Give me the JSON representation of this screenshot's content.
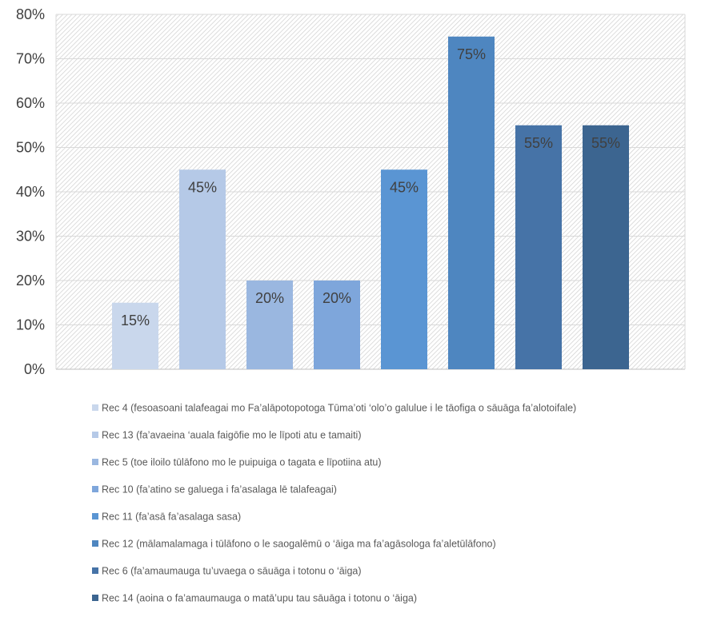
{
  "chart_data": {
    "type": "bar",
    "y_unit": "%",
    "ylim": [
      0,
      80
    ],
    "y_ticks": [
      0,
      10,
      20,
      30,
      40,
      50,
      60,
      70,
      80
    ],
    "grid": true,
    "legend_position": "bottom",
    "series": [
      {
        "name": "Rec 4 (fesoasoani talafeagai mo Fa’alāpotopotoga Tūma’oti ‘olo’o galulue i le tāofiga o sāuāga fa’alotoifale)",
        "value": 15,
        "label": "15%",
        "color": "#c9d7ec"
      },
      {
        "name": "Rec 13 (fa’avaeina ‘auala faigōfie mo le līpoti atu e tamaiti)",
        "value": 45,
        "label": "45%",
        "color": "#b5c9e7"
      },
      {
        "name": "Rec 5 (toe iloilo tūlāfono mo le puipuiga o tagata e līpotiina atu)",
        "value": 20,
        "label": "20%",
        "color": "#9ab7e0"
      },
      {
        "name": "Rec 10 (fa’atino se galuega i fa’asalaga lē talafeagai)",
        "value": 20,
        "label": "20%",
        "color": "#7ea6db"
      },
      {
        "name": "Rec 11 (fa’asā fa’asalaga sasa)",
        "value": 45,
        "label": "45%",
        "color": "#5a95d3"
      },
      {
        "name": "Rec 12 (mālamalamaga i tūlāfono o le saogalēmū o ‘āiga ma fa’agāsologa fa’aletūlāfono)",
        "value": 75,
        "label": "75%",
        "color": "#4e86c0"
      },
      {
        "name": "Rec 6 (fa’amaumauga tu’uvaega o sāuāga i totonu o ‘āiga)",
        "value": 55,
        "label": "55%",
        "color": "#4673a7"
      },
      {
        "name": "Rec 14 (aoina o fa’amaumauga o matā’upu tau sāuāga i totonu o ‘āiga)",
        "value": 55,
        "label": "55%",
        "color": "#3c6590"
      }
    ]
  }
}
